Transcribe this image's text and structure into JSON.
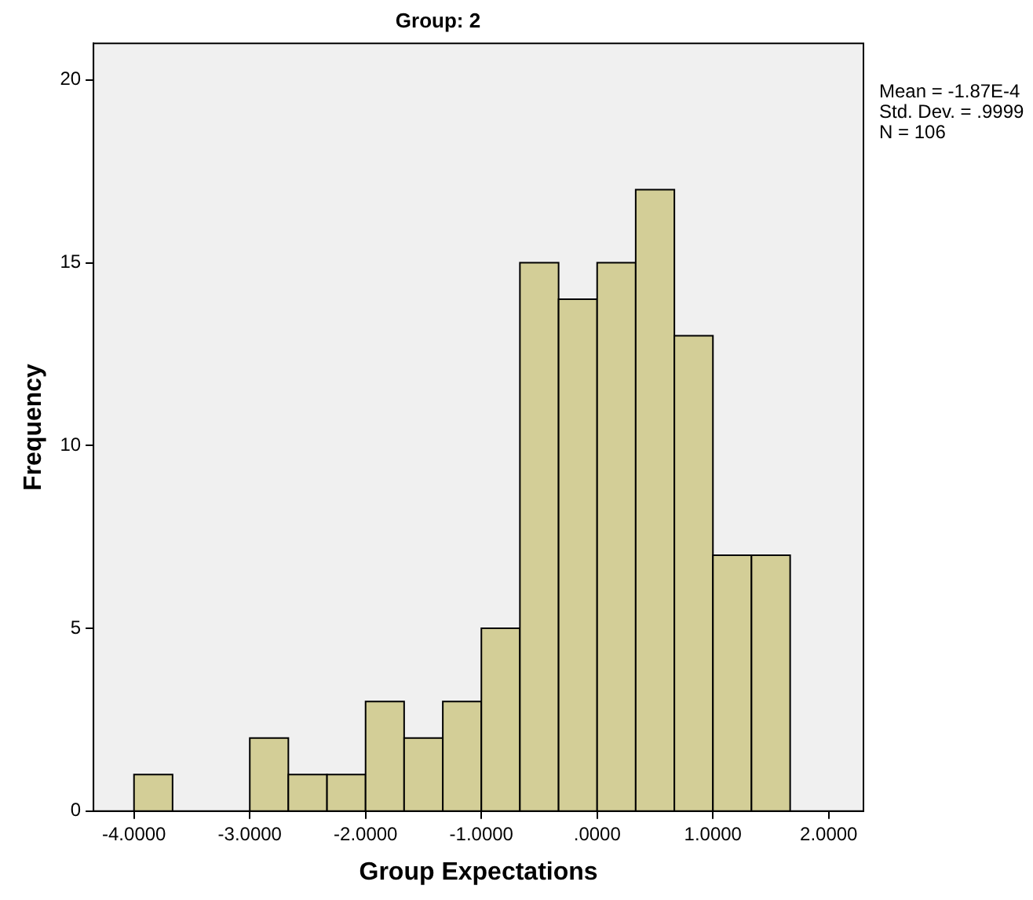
{
  "chart_data": {
    "type": "histogram",
    "title": "Group: 2",
    "xlabel": "Group Expectations",
    "ylabel": "Frequency",
    "annotations": [
      "Mean = -1.87E-4",
      "Std. Dev. = .9999",
      "N = 106"
    ],
    "bins": [
      -4,
      -3.667,
      -3.333,
      -3,
      -2.667,
      -2.333,
      -2,
      -1.667,
      -1.333,
      -1,
      -0.667,
      -0.333,
      0,
      0.333,
      0.667,
      1,
      1.333,
      1.667
    ],
    "values": [
      1,
      0,
      0,
      2,
      1,
      1,
      3,
      2,
      3,
      5,
      15,
      14,
      15,
      17,
      13,
      7,
      7
    ],
    "color": "#d3ce97",
    "xlim": [
      -4.35,
      2.3
    ],
    "xticks": [
      {
        "value": -4,
        "label": "-4.0000"
      },
      {
        "value": -3,
        "label": "-3.0000"
      },
      {
        "value": -2,
        "label": "-2.0000"
      },
      {
        "value": -1,
        "label": "-1.0000"
      },
      {
        "value": 0,
        "label": ".0000"
      },
      {
        "value": 1,
        "label": "1.0000"
      },
      {
        "value": 2,
        "label": "2.0000"
      }
    ],
    "ylim": [
      0,
      21
    ],
    "yticks": [
      0,
      5,
      10,
      15,
      20
    ]
  }
}
